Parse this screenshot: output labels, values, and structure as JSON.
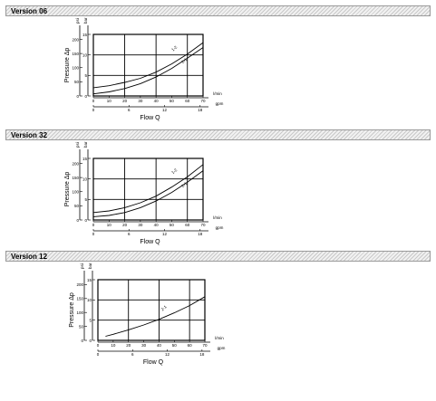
{
  "sections": [
    {
      "title": "Version 06"
    },
    {
      "title": "Version 32"
    },
    {
      "title": "Version 12"
    }
  ],
  "chart_data": [
    {
      "type": "line",
      "ylabel": "Pressure Δp",
      "xlabel": "Flow Q",
      "y_units": [
        "psi",
        "bar"
      ],
      "x_units": [
        "l/min",
        "gpm"
      ],
      "y_ticks_bar": [
        0,
        5,
        10,
        15
      ],
      "y_ticks_psi": [
        0,
        50,
        100,
        150,
        200
      ],
      "x_ticks_lpm": [
        0,
        10,
        20,
        30,
        40,
        50,
        60,
        70
      ],
      "x_ticks_gpm": [
        0,
        6,
        12,
        18
      ],
      "xlim": [
        0,
        70
      ],
      "ylim": [
        0,
        15
      ],
      "grid": true,
      "series": [
        {
          "name": "1-2",
          "x": [
            0,
            10,
            20,
            30,
            40,
            50,
            60,
            70
          ],
          "y": [
            2.0,
            2.5,
            3.3,
            4.3,
            5.8,
            7.8,
            10.2,
            13.0
          ]
        },
        {
          "name": "2-1",
          "x": [
            0,
            10,
            20,
            30,
            40,
            50,
            60,
            70
          ],
          "y": [
            0.5,
            1.0,
            1.8,
            3.0,
            4.6,
            6.7,
            9.2,
            11.8
          ]
        }
      ]
    },
    {
      "type": "line",
      "ylabel": "Pressure Δp",
      "xlabel": "Flow Q",
      "y_units": [
        "psi",
        "bar"
      ],
      "x_units": [
        "l/min",
        "gpm"
      ],
      "y_ticks_bar": [
        0,
        5,
        10,
        15
      ],
      "y_ticks_psi": [
        0,
        50,
        100,
        150,
        200
      ],
      "x_ticks_lpm": [
        0,
        10,
        20,
        30,
        40,
        50,
        60,
        70
      ],
      "x_ticks_gpm": [
        0,
        6,
        12,
        18
      ],
      "xlim": [
        0,
        70
      ],
      "ylim": [
        0,
        15
      ],
      "grid": true,
      "series": [
        {
          "name": "1-2",
          "x": [
            0,
            10,
            20,
            30,
            40,
            50,
            60,
            70
          ],
          "y": [
            1.8,
            2.2,
            3.0,
            4.2,
            5.8,
            8.0,
            10.5,
            13.5
          ]
        },
        {
          "name": "2-1",
          "x": [
            0,
            10,
            20,
            30,
            40,
            50,
            60,
            70
          ],
          "y": [
            0.8,
            1.1,
            1.8,
            3.0,
            4.6,
            6.7,
            9.2,
            12.0
          ]
        }
      ]
    },
    {
      "type": "line",
      "ylabel": "Pressure Δp",
      "xlabel": "Flow Q",
      "y_units": [
        "psi",
        "bar"
      ],
      "x_units": [
        "l/min",
        "gpm"
      ],
      "y_ticks_bar": [
        0,
        5,
        10,
        15
      ],
      "y_ticks_psi": [
        0,
        50,
        100,
        150,
        200
      ],
      "x_ticks_lpm": [
        0,
        10,
        20,
        30,
        40,
        50,
        60,
        70
      ],
      "x_ticks_gpm": [
        0,
        6,
        12,
        18
      ],
      "xlim": [
        0,
        70
      ],
      "ylim": [
        0,
        15
      ],
      "grid": true,
      "series": [
        {
          "name": "2-1",
          "x": [
            5,
            10,
            20,
            30,
            40,
            50,
            60,
            70
          ],
          "y": [
            1.0,
            1.5,
            2.6,
            3.8,
            5.2,
            6.8,
            8.6,
            10.8
          ]
        }
      ]
    }
  ]
}
